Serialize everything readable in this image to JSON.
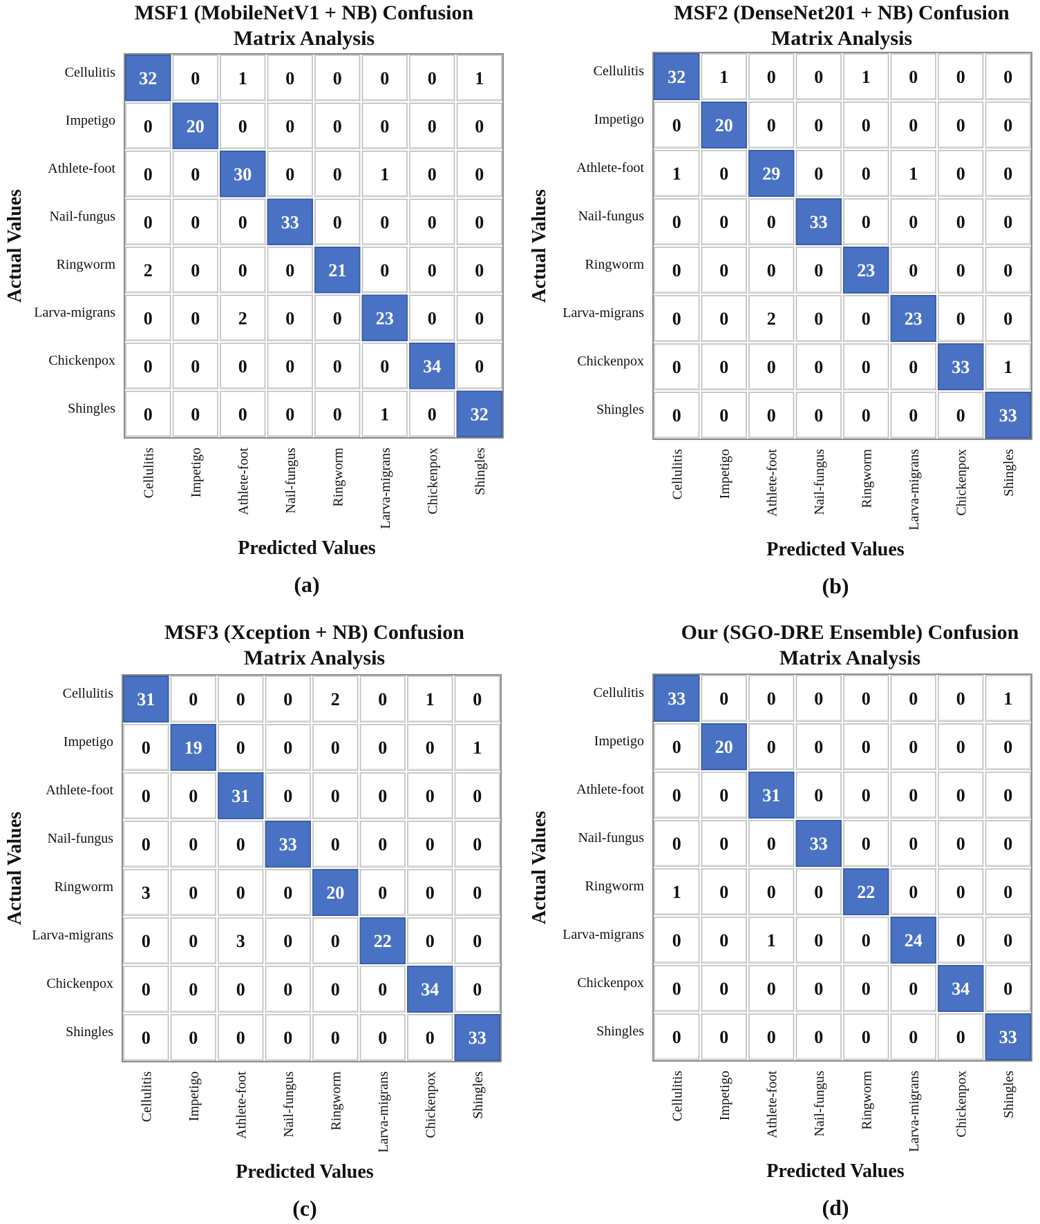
{
  "figure": {
    "labels_order": [
      "Cellulitis",
      "Impetigo",
      "Athlete-foot",
      "Nail-fungus",
      "Ringworm",
      "Larva-migrans",
      "Chickenpox",
      "Shingles"
    ]
  },
  "colors": {
    "diagonal": "#4a72c4",
    "diagonal_edge": "#3b5ea8",
    "cell_fill": "#ffffff",
    "cell_border": "#b8b8b8",
    "grid_frame": "#8c8c8c"
  },
  "chart_data": [
    {
      "type": "heatmap",
      "panel": "(a)",
      "title": [
        "MSF1 (MobileNetV1 + NB) Confusion",
        "Matrix Analysis"
      ],
      "xlabel": "Predicted Values",
      "ylabel": "Actual Values",
      "rows": [
        "Cellulitis",
        "Impetigo",
        "Athlete-foot",
        "Nail-fungus",
        "Ringworm",
        "Larva-migrans",
        "Chickenpox",
        "Shingles"
      ],
      "cols": [
        "Cellulitis",
        "Impetigo",
        "Athlete-foot",
        "Nail-fungus",
        "Ringworm",
        "Larva-migrans",
        "Chickenpox",
        "Shingles"
      ],
      "values": [
        [
          32,
          0,
          1,
          0,
          0,
          0,
          0,
          1
        ],
        [
          0,
          20,
          0,
          0,
          0,
          0,
          0,
          0
        ],
        [
          0,
          0,
          30,
          0,
          0,
          1,
          0,
          0
        ],
        [
          0,
          0,
          0,
          33,
          0,
          0,
          0,
          0
        ],
        [
          2,
          0,
          0,
          0,
          21,
          0,
          0,
          0
        ],
        [
          0,
          0,
          2,
          0,
          0,
          23,
          0,
          0
        ],
        [
          0,
          0,
          0,
          0,
          0,
          0,
          34,
          0
        ],
        [
          0,
          0,
          0,
          0,
          0,
          1,
          0,
          32
        ]
      ]
    },
    {
      "type": "heatmap",
      "panel": "(b)",
      "title": [
        "MSF2 (DenseNet201 + NB) Confusion",
        "Matrix Analysis"
      ],
      "xlabel": "Predicted Values",
      "ylabel": "Actual Values",
      "rows": [
        "Cellulitis",
        "Impetigo",
        "Athlete-foot",
        "Nail-fungus",
        "Ringworm",
        "Larva-migrans",
        "Chickenpox",
        "Shingles"
      ],
      "cols": [
        "Cellulitis",
        "Impetigo",
        "Athlete-foot",
        "Nail-fungus",
        "Ringworm",
        "Larva-migrans",
        "Chickenpox",
        "Shingles"
      ],
      "values": [
        [
          32,
          1,
          0,
          0,
          1,
          0,
          0,
          0
        ],
        [
          0,
          20,
          0,
          0,
          0,
          0,
          0,
          0
        ],
        [
          1,
          0,
          29,
          0,
          0,
          1,
          0,
          0
        ],
        [
          0,
          0,
          0,
          33,
          0,
          0,
          0,
          0
        ],
        [
          0,
          0,
          0,
          0,
          23,
          0,
          0,
          0
        ],
        [
          0,
          0,
          2,
          0,
          0,
          23,
          0,
          0
        ],
        [
          0,
          0,
          0,
          0,
          0,
          0,
          33,
          1
        ],
        [
          0,
          0,
          0,
          0,
          0,
          0,
          0,
          33
        ]
      ]
    },
    {
      "type": "heatmap",
      "panel": "(c)",
      "title": [
        "MSF3 (Xception + NB) Confusion",
        "Matrix Analysis"
      ],
      "xlabel": "Predicted Values",
      "ylabel": "Actual Values",
      "rows": [
        "Cellulitis",
        "Impetigo",
        "Athlete-foot",
        "Nail-fungus",
        "Ringworm",
        "Larva-migrans",
        "Chickenpox",
        "Shingles"
      ],
      "cols": [
        "Cellulitis",
        "Impetigo",
        "Athlete-foot",
        "Nail-fungus",
        "Ringworm",
        "Larva-migrans",
        "Chickenpox",
        "Shingles"
      ],
      "values": [
        [
          31,
          0,
          0,
          0,
          2,
          0,
          1,
          0
        ],
        [
          0,
          19,
          0,
          0,
          0,
          0,
          0,
          1
        ],
        [
          0,
          0,
          31,
          0,
          0,
          0,
          0,
          0
        ],
        [
          0,
          0,
          0,
          33,
          0,
          0,
          0,
          0
        ],
        [
          3,
          0,
          0,
          0,
          20,
          0,
          0,
          0
        ],
        [
          0,
          0,
          3,
          0,
          0,
          22,
          0,
          0
        ],
        [
          0,
          0,
          0,
          0,
          0,
          0,
          34,
          0
        ],
        [
          0,
          0,
          0,
          0,
          0,
          0,
          0,
          33
        ]
      ]
    },
    {
      "type": "heatmap",
      "panel": "(d)",
      "title": [
        "Our (SGO-DRE Ensemble) Confusion",
        "Matrix Analysis"
      ],
      "xlabel": "Predicted Values",
      "ylabel": "Actual Values",
      "rows": [
        "Cellulitis",
        "Impetigo",
        "Athlete-foot",
        "Nail-fungus",
        "Ringworm",
        "Larva-migrans",
        "Chickenpox",
        "Shingles"
      ],
      "cols": [
        "Cellulitis",
        "Impetigo",
        "Athlete-foot",
        "Nail-fungus",
        "Ringworm",
        "Larva-migrans",
        "Chickenpox",
        "Shingles"
      ],
      "values": [
        [
          33,
          0,
          0,
          0,
          0,
          0,
          0,
          1
        ],
        [
          0,
          20,
          0,
          0,
          0,
          0,
          0,
          0
        ],
        [
          0,
          0,
          31,
          0,
          0,
          0,
          0,
          0
        ],
        [
          0,
          0,
          0,
          33,
          0,
          0,
          0,
          0
        ],
        [
          1,
          0,
          0,
          0,
          22,
          0,
          0,
          0
        ],
        [
          0,
          0,
          1,
          0,
          0,
          24,
          0,
          0
        ],
        [
          0,
          0,
          0,
          0,
          0,
          0,
          34,
          0
        ],
        [
          0,
          0,
          0,
          0,
          0,
          0,
          0,
          33
        ]
      ]
    }
  ]
}
